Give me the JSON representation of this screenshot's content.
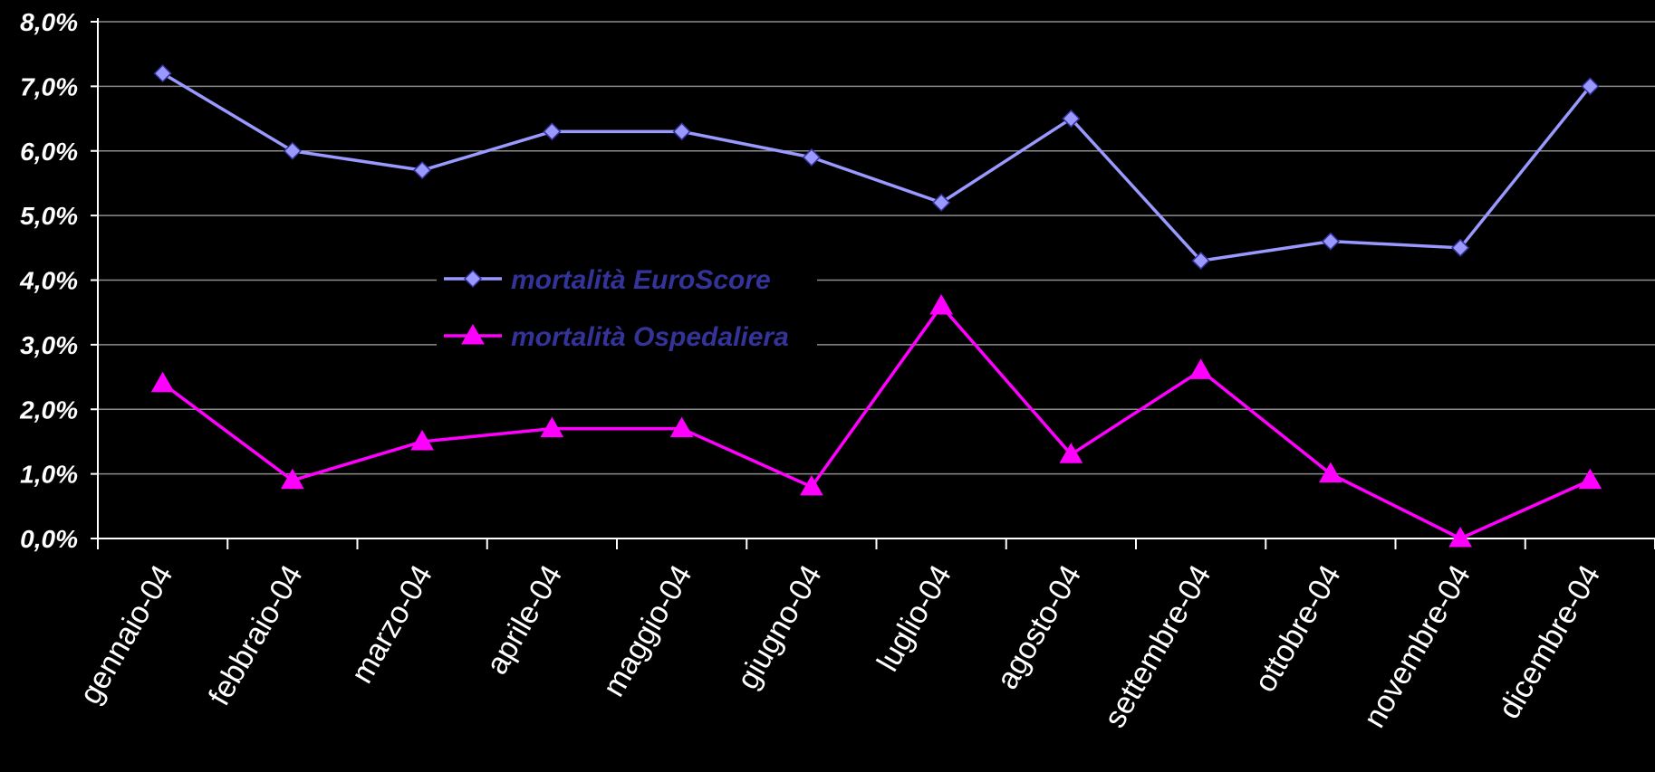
{
  "chart_data": {
    "type": "line",
    "categories": [
      "gennaio-04",
      "febbraio-04",
      "marzo-04",
      "aprile-04",
      "maggio-04",
      "giugno-04",
      "luglio-04",
      "agosto-04",
      "settembre-04",
      "ottobre-04",
      "novembre-04",
      "dicembre-04"
    ],
    "y_ticks": [
      "0,0%",
      "1,0%",
      "2,0%",
      "3,0%",
      "4,0%",
      "5,0%",
      "6,0%",
      "7,0%",
      "8,0%"
    ],
    "ylim": [
      0,
      8
    ],
    "grid": true,
    "legend_placement": "center-left",
    "series": [
      {
        "name": "mortalità EuroScore",
        "values": [
          7.2,
          6.0,
          5.7,
          6.3,
          6.3,
          5.9,
          5.2,
          6.5,
          4.3,
          4.6,
          4.5,
          7.0
        ],
        "color": "#9999ff",
        "marker": "diamond"
      },
      {
        "name": "mortalità Ospedaliera",
        "values": [
          2.4,
          0.9,
          1.5,
          1.7,
          1.7,
          0.8,
          3.6,
          1.3,
          2.6,
          1.0,
          0.0,
          0.9
        ],
        "color": "#ff00ff",
        "marker": "triangle"
      }
    ],
    "legend_text_color": "#333399",
    "background": "#000000",
    "axis_color": "#ffffff"
  }
}
